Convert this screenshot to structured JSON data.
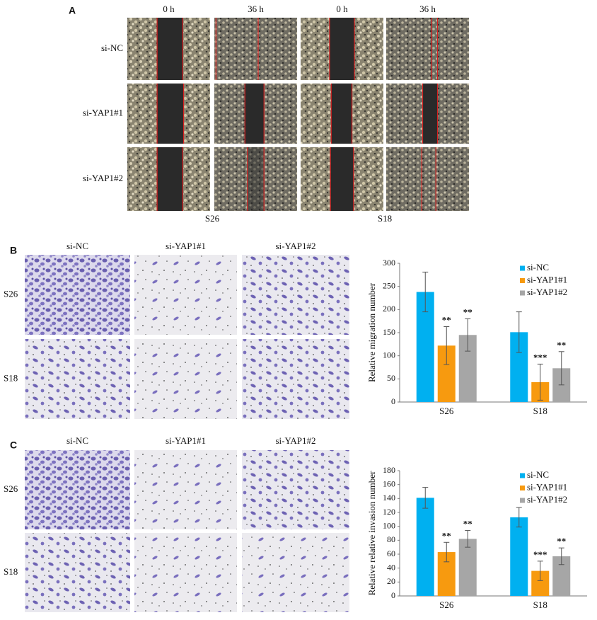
{
  "panel_a": {
    "label": "A",
    "columns": [
      "0 h",
      "36 h",
      "0 h",
      "36 h"
    ],
    "rows": [
      "si-NC",
      "si-YAP1#1",
      "si-YAP1#2"
    ],
    "groups": [
      "S26",
      "S18"
    ]
  },
  "panel_b": {
    "label": "B",
    "columns": [
      "si-NC",
      "si-YAP1#1",
      "si-YAP1#2"
    ],
    "rows": [
      "S26",
      "S18"
    ]
  },
  "panel_c": {
    "label": "C",
    "columns": [
      "si-NC",
      "si-YAP1#1",
      "si-YAP1#2"
    ],
    "rows": [
      "S26",
      "S18"
    ]
  },
  "chart_data": [
    {
      "type": "bar",
      "y_label": "Relative migration number",
      "categories": [
        "S26",
        "S18"
      ],
      "series": [
        {
          "name": "si-NC",
          "color": "#00b0f0",
          "values": [
            238,
            151
          ],
          "errors": [
            43,
            44
          ]
        },
        {
          "name": "si-YAP1#1",
          "color": "#f79a0f",
          "values": [
            122,
            43
          ],
          "errors": [
            41,
            39
          ],
          "significance": [
            "**",
            "***"
          ]
        },
        {
          "name": "si-YAP1#2",
          "color": "#a6a6a6",
          "values": [
            145,
            73
          ],
          "errors": [
            35,
            36
          ],
          "significance": [
            "**",
            "**"
          ]
        }
      ],
      "ylim": [
        0,
        300
      ],
      "yticks": [
        0,
        50,
        100,
        150,
        200,
        250,
        300
      ],
      "legend": "top-right"
    },
    {
      "type": "bar",
      "y_label": "Relative relative invasion number",
      "categories": [
        "S26",
        "S18"
      ],
      "series": [
        {
          "name": "si-NC",
          "color": "#00b0f0",
          "values": [
            141,
            113
          ],
          "errors": [
            15,
            14
          ]
        },
        {
          "name": "si-YAP1#1",
          "color": "#f79a0f",
          "values": [
            63,
            36
          ],
          "errors": [
            14,
            14
          ],
          "significance": [
            "**",
            "***"
          ]
        },
        {
          "name": "si-YAP1#2",
          "color": "#a6a6a6",
          "values": [
            82,
            57
          ],
          "errors": [
            12,
            12
          ],
          "significance": [
            "**",
            "**"
          ]
        }
      ],
      "ylim": [
        0,
        180
      ],
      "yticks": [
        0,
        20,
        40,
        60,
        80,
        100,
        120,
        140,
        160,
        180
      ],
      "legend": "top-right"
    }
  ]
}
